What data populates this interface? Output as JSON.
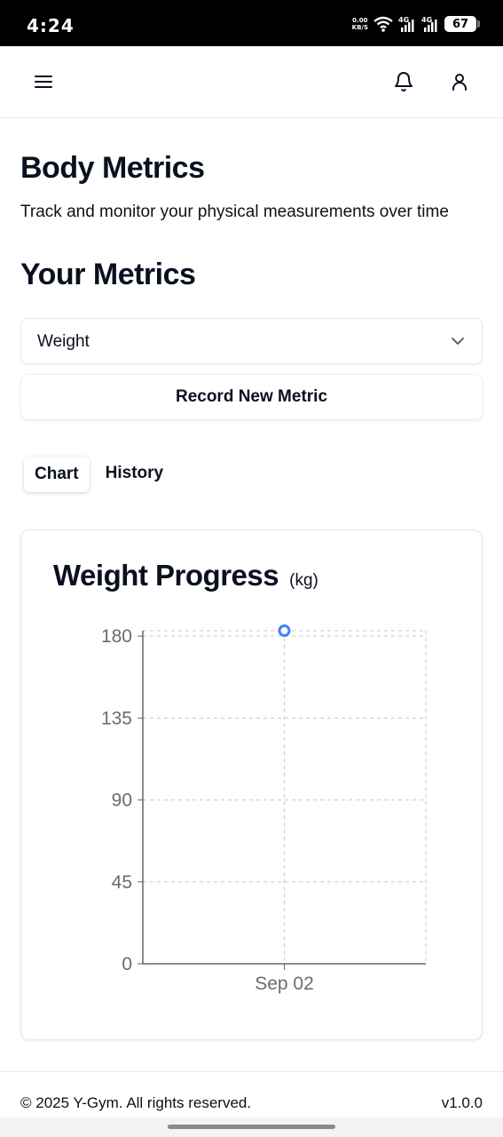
{
  "status": {
    "time": "4:24",
    "net_speed_value": "0.00",
    "net_speed_unit": "KB/S",
    "sim1": "4G",
    "sim2": "4G",
    "battery": "67"
  },
  "header": {
    "menu_icon": "menu-icon",
    "bell_icon": "bell-icon",
    "user_icon": "user-icon"
  },
  "page": {
    "title": "Body Metrics",
    "subtitle": "Track and monitor your physical measurements over time",
    "section_title": "Your Metrics"
  },
  "metric_select": {
    "value": "Weight"
  },
  "record_button": {
    "label": "Record New Metric"
  },
  "tabs": [
    {
      "label": "Chart",
      "active": true
    },
    {
      "label": "History",
      "active": false
    }
  ],
  "card": {
    "title": "Weight Progress",
    "unit": "(kg)"
  },
  "chart_data": {
    "type": "line",
    "x": [
      "Sep 02"
    ],
    "series": [
      {
        "values": [
          183
        ],
        "color": "#3b82f6"
      }
    ],
    "y_ticks": [
      "0",
      "45",
      "90",
      "135",
      "180"
    ],
    "x_tick_labels": [
      "Sep 02"
    ],
    "ylim": [
      0,
      183
    ],
    "grid": true,
    "legend": "none",
    "title": "Weight Progress",
    "xlabel": "",
    "ylabel": ""
  },
  "footer": {
    "copyright": "© 2025 Y-Gym. All rights reserved.",
    "version": "v1.0.0"
  }
}
